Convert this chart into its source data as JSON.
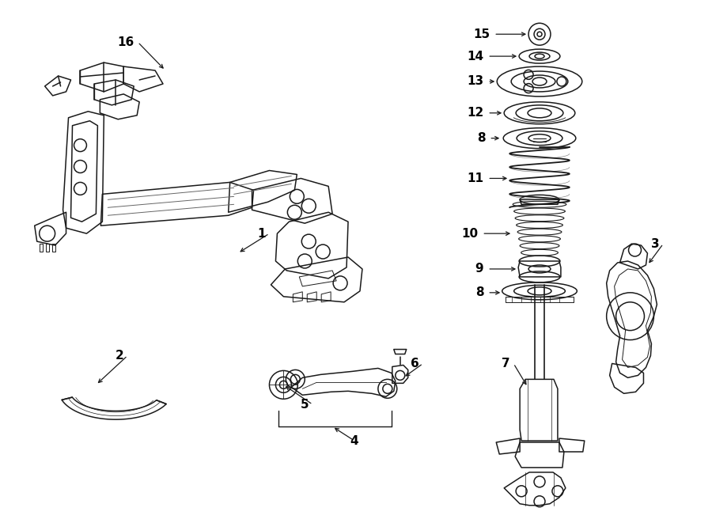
{
  "bg_color": "#ffffff",
  "line_color": "#1a1a1a",
  "fig_width": 9.0,
  "fig_height": 6.61,
  "dpi": 100,
  "label_fontsize": 11,
  "arrow_lw": 0.9,
  "part_lw": 1.1
}
